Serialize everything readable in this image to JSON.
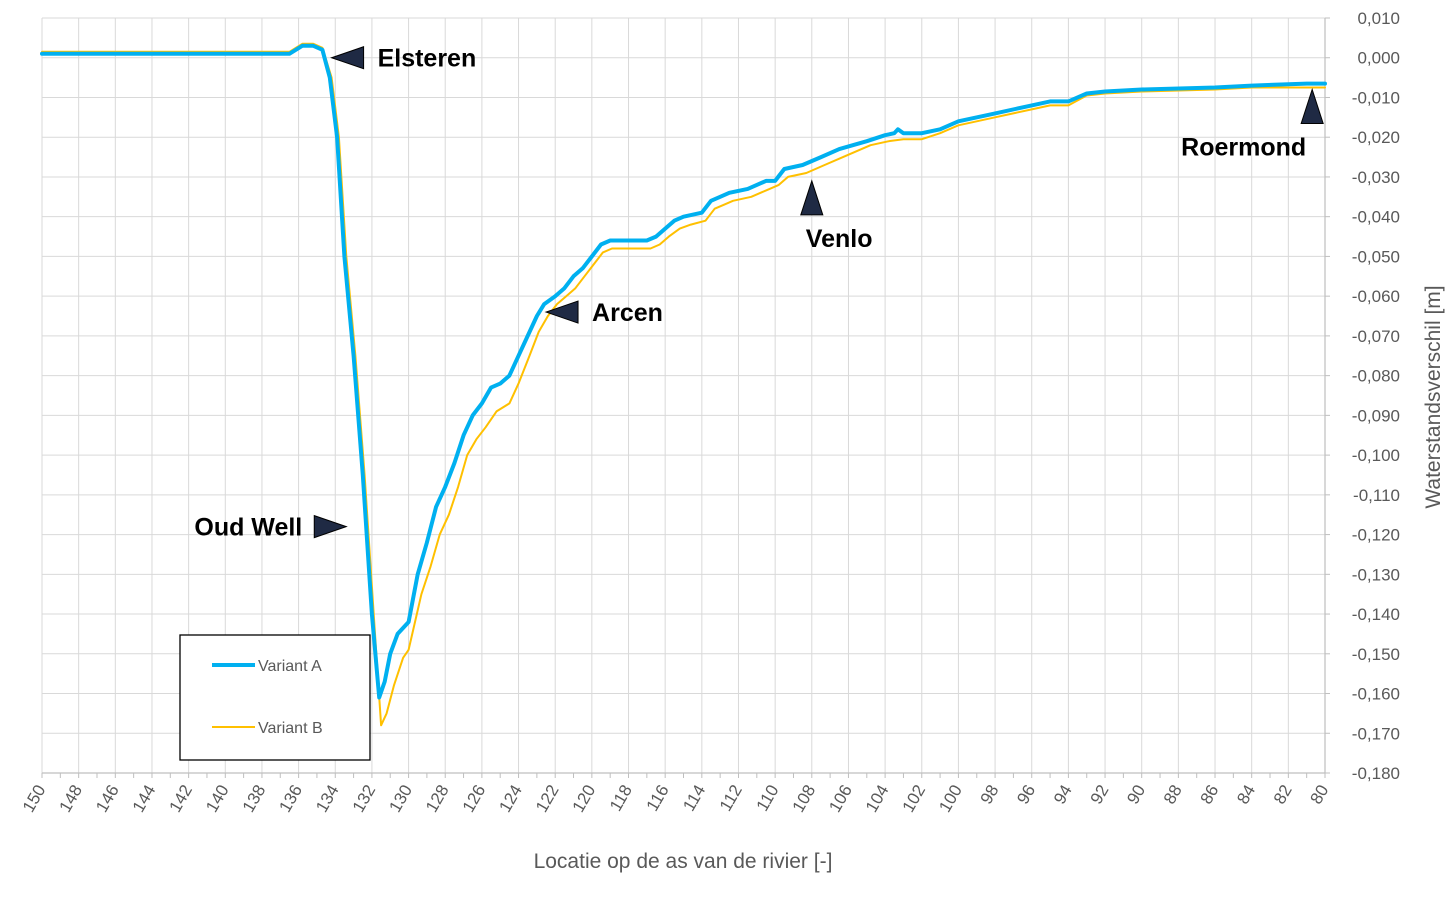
{
  "chart_data": {
    "type": "line",
    "xlabel": "Locatie op de as van de rivier [-]",
    "ylabel": "Waterstandsverschil [m]",
    "xlim": [
      150,
      80
    ],
    "ylim": [
      -0.18,
      0.01
    ],
    "x_reversed": true,
    "x_ticks": [
      "150",
      "148",
      "146",
      "144",
      "142",
      "140",
      "138",
      "136",
      "134",
      "132",
      "130",
      "128",
      "126",
      "124",
      "122",
      "120",
      "118",
      "116",
      "114",
      "112",
      "110",
      "108",
      "106",
      "104",
      "102",
      "100",
      "98",
      "96",
      "94",
      "92",
      "90",
      "88",
      "86",
      "84",
      "82",
      "80"
    ],
    "y_ticks": [
      "0,010",
      "0,000",
      "-0,010",
      "-0,020",
      "-0,030",
      "-0,040",
      "-0,050",
      "-0,060",
      "-0,070",
      "-0,080",
      "-0,090",
      "-0,100",
      "-0,110",
      "-0,120",
      "-0,130",
      "-0,140",
      "-0,150",
      "-0,160",
      "-0,170",
      "-0,180"
    ],
    "y_tick_values": [
      0.01,
      0.0,
      -0.01,
      -0.02,
      -0.03,
      -0.04,
      -0.05,
      -0.06,
      -0.07,
      -0.08,
      -0.09,
      -0.1,
      -0.11,
      -0.12,
      -0.13,
      -0.14,
      -0.15,
      -0.16,
      -0.17,
      -0.18
    ],
    "grid": true,
    "legend_position": "bottom-left",
    "series": [
      {
        "name": "Variant A",
        "color": "#00B0F0",
        "points": [
          [
            150,
            0.001
          ],
          [
            140,
            0.001
          ],
          [
            138,
            0.001
          ],
          [
            136.5,
            0.001
          ],
          [
            135.8,
            0.003
          ],
          [
            135.2,
            0.003
          ],
          [
            134.7,
            0.002
          ],
          [
            134.3,
            -0.005
          ],
          [
            133.9,
            -0.02
          ],
          [
            133.5,
            -0.05
          ],
          [
            133,
            -0.075
          ],
          [
            132.5,
            -0.105
          ],
          [
            132,
            -0.14
          ],
          [
            131.6,
            -0.161
          ],
          [
            131.3,
            -0.157
          ],
          [
            131,
            -0.15
          ],
          [
            130.6,
            -0.145
          ],
          [
            130,
            -0.142
          ],
          [
            129.5,
            -0.13
          ],
          [
            129,
            -0.122
          ],
          [
            128.5,
            -0.113
          ],
          [
            128,
            -0.108
          ],
          [
            127.5,
            -0.102
          ],
          [
            127,
            -0.095
          ],
          [
            126.5,
            -0.09
          ],
          [
            126,
            -0.087
          ],
          [
            125.5,
            -0.083
          ],
          [
            125,
            -0.082
          ],
          [
            124.5,
            -0.08
          ],
          [
            124,
            -0.075
          ],
          [
            123.5,
            -0.07
          ],
          [
            123,
            -0.065
          ],
          [
            122.6,
            -0.062
          ],
          [
            122,
            -0.06
          ],
          [
            121.5,
            -0.058
          ],
          [
            121,
            -0.055
          ],
          [
            120.5,
            -0.053
          ],
          [
            120,
            -0.05
          ],
          [
            119.5,
            -0.047
          ],
          [
            119,
            -0.046
          ],
          [
            117,
            -0.046
          ],
          [
            116.5,
            -0.045
          ],
          [
            116,
            -0.043
          ],
          [
            115.5,
            -0.041
          ],
          [
            115,
            -0.04
          ],
          [
            114,
            -0.039
          ],
          [
            113.5,
            -0.036
          ],
          [
            113,
            -0.035
          ],
          [
            112.5,
            -0.034
          ],
          [
            111.5,
            -0.033
          ],
          [
            111,
            -0.032
          ],
          [
            110.5,
            -0.031
          ],
          [
            110,
            -0.031
          ],
          [
            109.5,
            -0.028
          ],
          [
            108.5,
            -0.027
          ],
          [
            107.5,
            -0.025
          ],
          [
            106.5,
            -0.023
          ],
          [
            105,
            -0.021
          ],
          [
            104,
            -0.0195
          ],
          [
            103.5,
            -0.019
          ],
          [
            103.3,
            -0.018
          ],
          [
            103,
            -0.019
          ],
          [
            102,
            -0.019
          ],
          [
            101,
            -0.018
          ],
          [
            100,
            -0.016
          ],
          [
            98,
            -0.014
          ],
          [
            96,
            -0.012
          ],
          [
            95,
            -0.011
          ],
          [
            94,
            -0.011
          ],
          [
            93,
            -0.009
          ],
          [
            92,
            -0.0085
          ],
          [
            90,
            -0.008
          ],
          [
            86,
            -0.0075
          ],
          [
            84,
            -0.007
          ],
          [
            81,
            -0.0065
          ],
          [
            80,
            -0.0065
          ]
        ]
      },
      {
        "name": "Variant B",
        "color": "#FFC000",
        "points": [
          [
            150,
            0.0015
          ],
          [
            140,
            0.0015
          ],
          [
            138,
            0.0015
          ],
          [
            136.5,
            0.0015
          ],
          [
            135.8,
            0.0035
          ],
          [
            135.2,
            0.0035
          ],
          [
            134.7,
            0.0025
          ],
          [
            134.2,
            -0.005
          ],
          [
            133.8,
            -0.02
          ],
          [
            133.4,
            -0.05
          ],
          [
            132.9,
            -0.075
          ],
          [
            132.4,
            -0.105
          ],
          [
            131.9,
            -0.14
          ],
          [
            131.5,
            -0.168
          ],
          [
            131.2,
            -0.165
          ],
          [
            130.8,
            -0.158
          ],
          [
            130.3,
            -0.151
          ],
          [
            130,
            -0.149
          ],
          [
            129.3,
            -0.135
          ],
          [
            128.8,
            -0.128
          ],
          [
            128.3,
            -0.12
          ],
          [
            127.8,
            -0.115
          ],
          [
            127.3,
            -0.108
          ],
          [
            126.8,
            -0.1
          ],
          [
            126.3,
            -0.096
          ],
          [
            125.8,
            -0.093
          ],
          [
            125.2,
            -0.089
          ],
          [
            124.5,
            -0.087
          ],
          [
            124,
            -0.082
          ],
          [
            123.4,
            -0.075
          ],
          [
            122.9,
            -0.069
          ],
          [
            122.4,
            -0.065
          ],
          [
            121.9,
            -0.062
          ],
          [
            121.4,
            -0.06
          ],
          [
            120.9,
            -0.058
          ],
          [
            120.4,
            -0.055
          ],
          [
            119.9,
            -0.052
          ],
          [
            119.4,
            -0.049
          ],
          [
            118.9,
            -0.048
          ],
          [
            116.8,
            -0.048
          ],
          [
            116.3,
            -0.047
          ],
          [
            115.8,
            -0.045
          ],
          [
            115.2,
            -0.043
          ],
          [
            114.6,
            -0.042
          ],
          [
            113.8,
            -0.041
          ],
          [
            113.3,
            -0.038
          ],
          [
            112.8,
            -0.037
          ],
          [
            112.3,
            -0.036
          ],
          [
            111.3,
            -0.035
          ],
          [
            110.8,
            -0.034
          ],
          [
            110.3,
            -0.033
          ],
          [
            109.8,
            -0.032
          ],
          [
            109.3,
            -0.03
          ],
          [
            108.3,
            -0.029
          ],
          [
            107.3,
            -0.027
          ],
          [
            106.3,
            -0.025
          ],
          [
            104.8,
            -0.022
          ],
          [
            103.8,
            -0.021
          ],
          [
            103,
            -0.0205
          ],
          [
            102,
            -0.0205
          ],
          [
            101,
            -0.019
          ],
          [
            100,
            -0.017
          ],
          [
            98,
            -0.015
          ],
          [
            96,
            -0.013
          ],
          [
            95,
            -0.012
          ],
          [
            94,
            -0.012
          ],
          [
            93,
            -0.0095
          ],
          [
            92,
            -0.009
          ],
          [
            90,
            -0.0085
          ],
          [
            86,
            -0.008
          ],
          [
            84,
            -0.0075
          ],
          [
            81,
            -0.0075
          ],
          [
            80,
            -0.0075
          ]
        ]
      }
    ],
    "annotations": [
      {
        "label": "Elsteren",
        "x": 134.2,
        "y": 0.0,
        "pointer": "left"
      },
      {
        "label": "Oud Well",
        "x": 133.4,
        "y": -0.118,
        "pointer": "right"
      },
      {
        "label": "Arcen",
        "x": 122.5,
        "y": -0.064,
        "pointer": "left"
      },
      {
        "label": "Venlo",
        "x": 108.0,
        "y": -0.031,
        "pointer": "up"
      },
      {
        "label": "Roermond",
        "x": 80.7,
        "y": -0.008,
        "pointer": "up"
      }
    ]
  }
}
